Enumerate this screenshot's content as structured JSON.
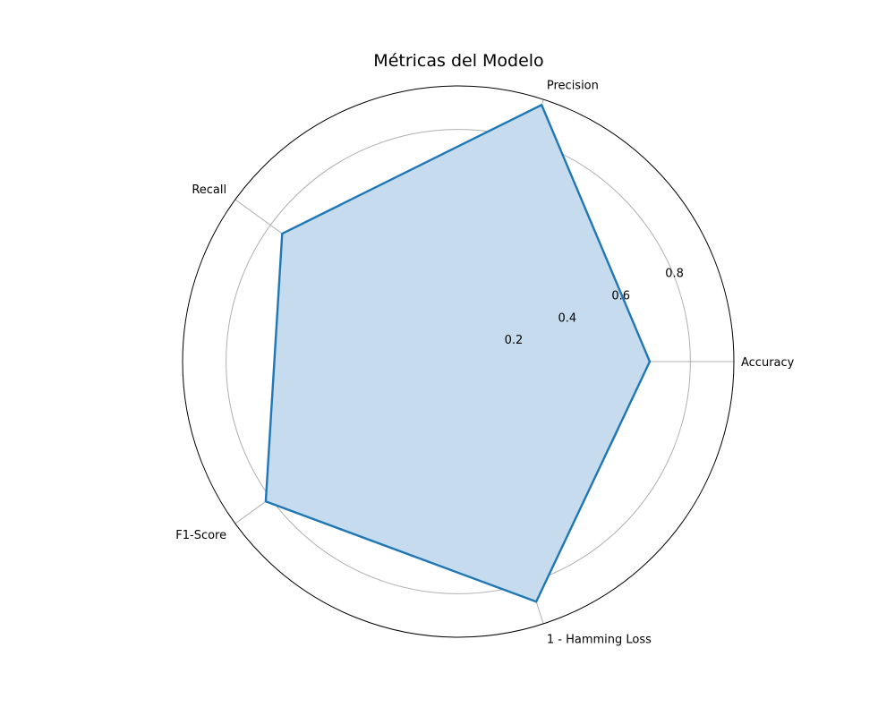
{
  "chart_data": {
    "type": "radar",
    "title": "Métricas del Modelo",
    "categories": [
      "Accuracy",
      "Precision",
      "Recall",
      "F1-Score",
      "1 - Hamming Loss"
    ],
    "series": [
      {
        "values": [
          0.66,
          0.93,
          0.75,
          0.82,
          0.87
        ],
        "color": "#1f77b4",
        "fill": "#c6dbed"
      }
    ],
    "radial_ticks": [
      "0.2",
      "0.4",
      "0.6",
      "0.8"
    ],
    "radial_tick_values": [
      0.2,
      0.4,
      0.6,
      0.8
    ],
    "rmax": 0.95,
    "grid": true,
    "legend": "none"
  }
}
